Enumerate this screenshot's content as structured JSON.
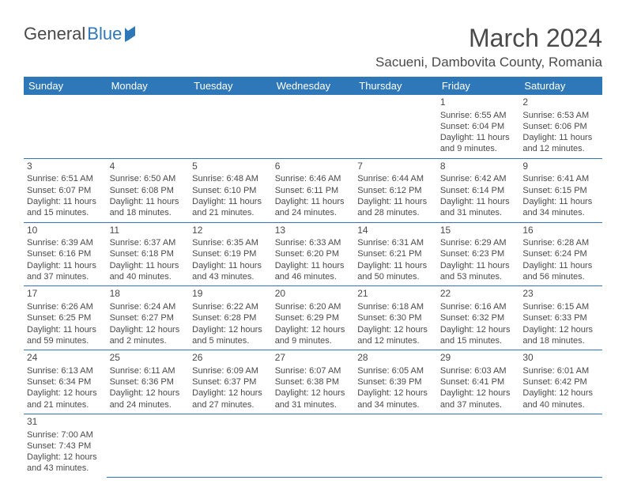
{
  "brand": {
    "part1": "General",
    "part2": "Blue"
  },
  "title": "March 2024",
  "location": "Sacueni, Dambovita County, Romania",
  "day_headers": [
    "Sunday",
    "Monday",
    "Tuesday",
    "Wednesday",
    "Thursday",
    "Friday",
    "Saturday"
  ],
  "colors": {
    "header_bg": "#2e77b8",
    "header_text": "#ffffff",
    "text": "#4a4a4a",
    "background": "#ffffff",
    "rule": "#2e77b8"
  },
  "weeks": [
    [
      null,
      null,
      null,
      null,
      null,
      {
        "n": "1",
        "sr": "Sunrise: 6:55 AM",
        "ss": "Sunset: 6:04 PM",
        "dl": "Daylight: 11 hours and 9 minutes."
      },
      {
        "n": "2",
        "sr": "Sunrise: 6:53 AM",
        "ss": "Sunset: 6:06 PM",
        "dl": "Daylight: 11 hours and 12 minutes."
      }
    ],
    [
      {
        "n": "3",
        "sr": "Sunrise: 6:51 AM",
        "ss": "Sunset: 6:07 PM",
        "dl": "Daylight: 11 hours and 15 minutes."
      },
      {
        "n": "4",
        "sr": "Sunrise: 6:50 AM",
        "ss": "Sunset: 6:08 PM",
        "dl": "Daylight: 11 hours and 18 minutes."
      },
      {
        "n": "5",
        "sr": "Sunrise: 6:48 AM",
        "ss": "Sunset: 6:10 PM",
        "dl": "Daylight: 11 hours and 21 minutes."
      },
      {
        "n": "6",
        "sr": "Sunrise: 6:46 AM",
        "ss": "Sunset: 6:11 PM",
        "dl": "Daylight: 11 hours and 24 minutes."
      },
      {
        "n": "7",
        "sr": "Sunrise: 6:44 AM",
        "ss": "Sunset: 6:12 PM",
        "dl": "Daylight: 11 hours and 28 minutes."
      },
      {
        "n": "8",
        "sr": "Sunrise: 6:42 AM",
        "ss": "Sunset: 6:14 PM",
        "dl": "Daylight: 11 hours and 31 minutes."
      },
      {
        "n": "9",
        "sr": "Sunrise: 6:41 AM",
        "ss": "Sunset: 6:15 PM",
        "dl": "Daylight: 11 hours and 34 minutes."
      }
    ],
    [
      {
        "n": "10",
        "sr": "Sunrise: 6:39 AM",
        "ss": "Sunset: 6:16 PM",
        "dl": "Daylight: 11 hours and 37 minutes."
      },
      {
        "n": "11",
        "sr": "Sunrise: 6:37 AM",
        "ss": "Sunset: 6:18 PM",
        "dl": "Daylight: 11 hours and 40 minutes."
      },
      {
        "n": "12",
        "sr": "Sunrise: 6:35 AM",
        "ss": "Sunset: 6:19 PM",
        "dl": "Daylight: 11 hours and 43 minutes."
      },
      {
        "n": "13",
        "sr": "Sunrise: 6:33 AM",
        "ss": "Sunset: 6:20 PM",
        "dl": "Daylight: 11 hours and 46 minutes."
      },
      {
        "n": "14",
        "sr": "Sunrise: 6:31 AM",
        "ss": "Sunset: 6:21 PM",
        "dl": "Daylight: 11 hours and 50 minutes."
      },
      {
        "n": "15",
        "sr": "Sunrise: 6:29 AM",
        "ss": "Sunset: 6:23 PM",
        "dl": "Daylight: 11 hours and 53 minutes."
      },
      {
        "n": "16",
        "sr": "Sunrise: 6:28 AM",
        "ss": "Sunset: 6:24 PM",
        "dl": "Daylight: 11 hours and 56 minutes."
      }
    ],
    [
      {
        "n": "17",
        "sr": "Sunrise: 6:26 AM",
        "ss": "Sunset: 6:25 PM",
        "dl": "Daylight: 11 hours and 59 minutes."
      },
      {
        "n": "18",
        "sr": "Sunrise: 6:24 AM",
        "ss": "Sunset: 6:27 PM",
        "dl": "Daylight: 12 hours and 2 minutes."
      },
      {
        "n": "19",
        "sr": "Sunrise: 6:22 AM",
        "ss": "Sunset: 6:28 PM",
        "dl": "Daylight: 12 hours and 5 minutes."
      },
      {
        "n": "20",
        "sr": "Sunrise: 6:20 AM",
        "ss": "Sunset: 6:29 PM",
        "dl": "Daylight: 12 hours and 9 minutes."
      },
      {
        "n": "21",
        "sr": "Sunrise: 6:18 AM",
        "ss": "Sunset: 6:30 PM",
        "dl": "Daylight: 12 hours and 12 minutes."
      },
      {
        "n": "22",
        "sr": "Sunrise: 6:16 AM",
        "ss": "Sunset: 6:32 PM",
        "dl": "Daylight: 12 hours and 15 minutes."
      },
      {
        "n": "23",
        "sr": "Sunrise: 6:15 AM",
        "ss": "Sunset: 6:33 PM",
        "dl": "Daylight: 12 hours and 18 minutes."
      }
    ],
    [
      {
        "n": "24",
        "sr": "Sunrise: 6:13 AM",
        "ss": "Sunset: 6:34 PM",
        "dl": "Daylight: 12 hours and 21 minutes."
      },
      {
        "n": "25",
        "sr": "Sunrise: 6:11 AM",
        "ss": "Sunset: 6:36 PM",
        "dl": "Daylight: 12 hours and 24 minutes."
      },
      {
        "n": "26",
        "sr": "Sunrise: 6:09 AM",
        "ss": "Sunset: 6:37 PM",
        "dl": "Daylight: 12 hours and 27 minutes."
      },
      {
        "n": "27",
        "sr": "Sunrise: 6:07 AM",
        "ss": "Sunset: 6:38 PM",
        "dl": "Daylight: 12 hours and 31 minutes."
      },
      {
        "n": "28",
        "sr": "Sunrise: 6:05 AM",
        "ss": "Sunset: 6:39 PM",
        "dl": "Daylight: 12 hours and 34 minutes."
      },
      {
        "n": "29",
        "sr": "Sunrise: 6:03 AM",
        "ss": "Sunset: 6:41 PM",
        "dl": "Daylight: 12 hours and 37 minutes."
      },
      {
        "n": "30",
        "sr": "Sunrise: 6:01 AM",
        "ss": "Sunset: 6:42 PM",
        "dl": "Daylight: 12 hours and 40 minutes."
      }
    ],
    [
      {
        "n": "31",
        "sr": "Sunrise: 7:00 AM",
        "ss": "Sunset: 7:43 PM",
        "dl": "Daylight: 12 hours and 43 minutes."
      },
      null,
      null,
      null,
      null,
      null,
      null
    ]
  ]
}
